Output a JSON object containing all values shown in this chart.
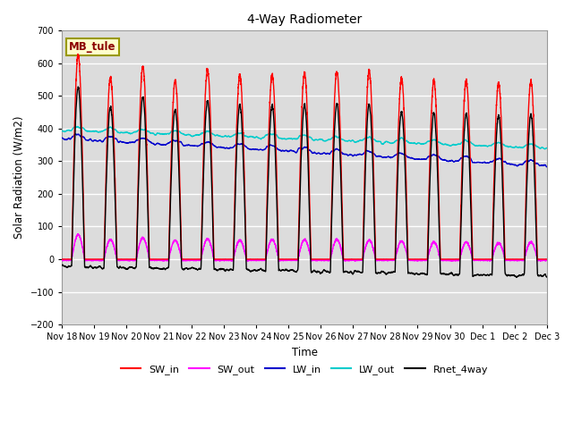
{
  "title": "4-Way Radiometer",
  "ylabel": "Solar Radiation (W/m2)",
  "xlabel": "Time",
  "ylim": [
    -200,
    700
  ],
  "yticks": [
    -200,
    -100,
    0,
    100,
    200,
    300,
    400,
    500,
    600,
    700
  ],
  "annotation": "MB_tule",
  "bg_color": "#dcdcdc",
  "series": {
    "SW_in": {
      "color": "#ff0000",
      "lw": 1.0
    },
    "SW_out": {
      "color": "#ff00ff",
      "lw": 1.0
    },
    "LW_in": {
      "color": "#0000cc",
      "lw": 1.0
    },
    "LW_out": {
      "color": "#00cccc",
      "lw": 1.0
    },
    "Rnet_4way": {
      "color": "#000000",
      "lw": 1.0
    }
  },
  "xtick_labels": [
    "Nov 18",
    "Nov 19",
    "Nov 20",
    "Nov 21",
    "Nov 22",
    "Nov 23",
    "Nov 24",
    "Nov 25",
    "Nov 26",
    "Nov 27",
    "Nov 28",
    "Nov 29",
    "Nov 30",
    "Dec 1",
    "Dec 2",
    "Dec 3"
  ],
  "num_days": 15,
  "pts_per_day": 288
}
